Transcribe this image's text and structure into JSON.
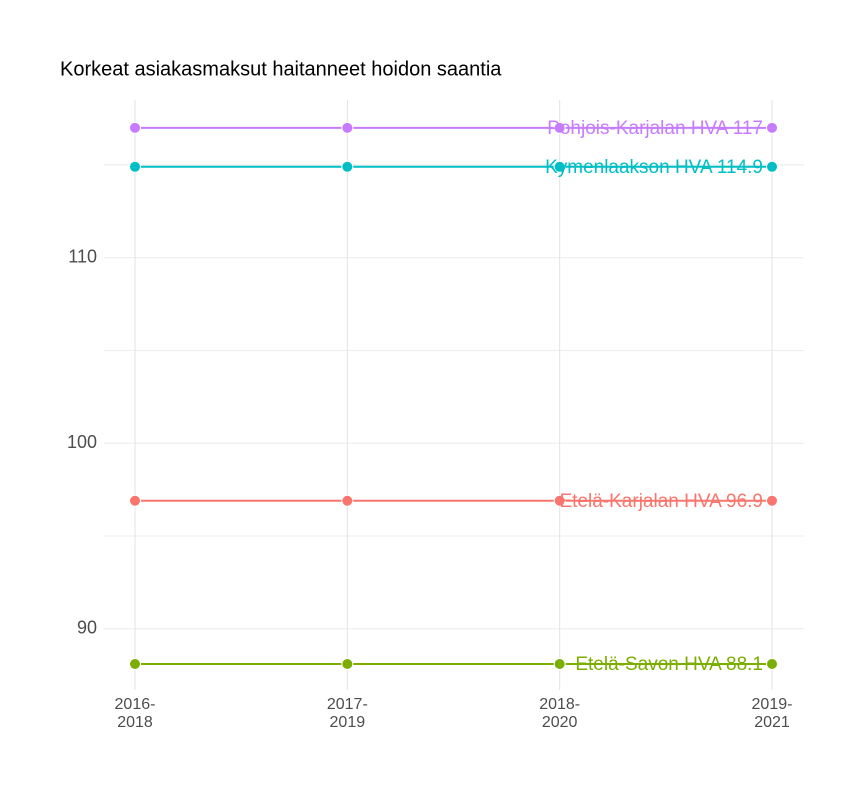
{
  "chart_data": {
    "type": "line",
    "title": "Korkeat asiakasmaksut haitanneet hoidon saantia",
    "categories": [
      "2016-2018",
      "2017-2019",
      "2018-2020",
      "2019-2021"
    ],
    "series": [
      {
        "label": "Pohjois-Karjalan HVA 117",
        "color": "#C77CFF",
        "values": [
          117,
          117,
          117,
          117
        ]
      },
      {
        "label": "Kymenlaakson HVA 114.9",
        "color": "#00BFC4",
        "values": [
          114.9,
          114.9,
          114.9,
          114.9
        ]
      },
      {
        "label": "Etelä-Karjalan HVA 96.9",
        "color": "#F8766D",
        "values": [
          96.9,
          96.9,
          96.9,
          96.9
        ]
      },
      {
        "label": "Etelä-Savon HVA 88.1",
        "color": "#7CAE00",
        "values": [
          88.1,
          88.1,
          88.1,
          88.1
        ]
      }
    ],
    "ylim": [
      86.7,
      118.5
    ],
    "yticks": [
      90,
      100,
      110
    ],
    "minor_yticks": [
      95,
      105,
      115
    ],
    "grid": true
  }
}
